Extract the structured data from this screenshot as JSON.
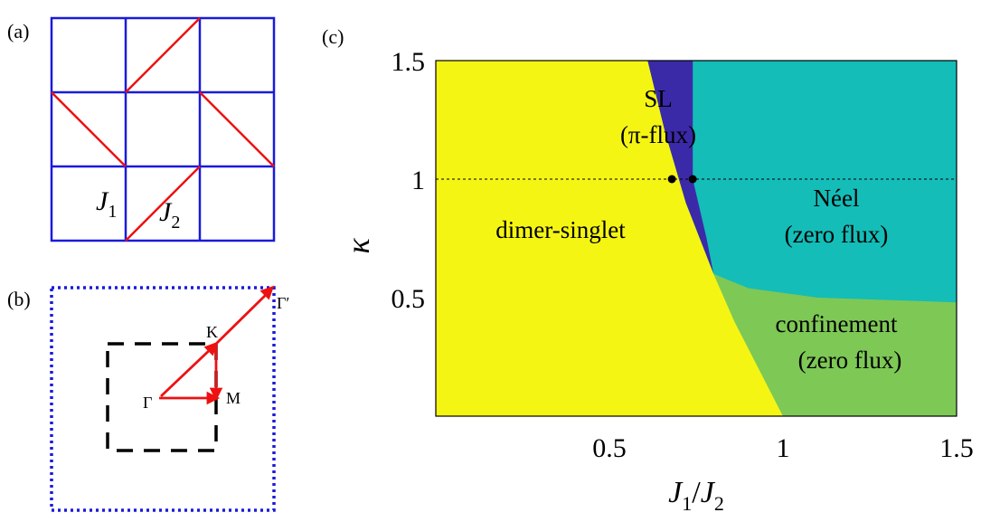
{
  "panels": {
    "a": {
      "label": "(a)",
      "j1_label": "J",
      "j1_sub": "1",
      "j2_label": "J",
      "j2_sub": "2"
    },
    "b": {
      "label": "(b)",
      "points": {
        "gamma": "Γ",
        "k": "K",
        "m": "M",
        "gamma_prime": "Γ′"
      }
    },
    "c": {
      "label": "(c)"
    }
  },
  "colors": {
    "lattice": "#1a1adb",
    "bond_j2": "#ee1111",
    "dimer_singlet": "#f5f514",
    "spin_liquid": "#3a2aa8",
    "neel": "#14bdb8",
    "confinement": "#7ec856",
    "path": "#ee1111",
    "inner_bz": "#000000",
    "outer_bz": "#1a1adb"
  },
  "chart_data": {
    "type": "heatmap",
    "xlabel": "J1/J2",
    "ylabel": "κ",
    "xlim": [
      0,
      1.5
    ],
    "ylim": [
      0,
      1.5
    ],
    "xticks": [
      "0.5",
      "1",
      "1.5"
    ],
    "yticks": [
      "1.5",
      "1",
      "0.5"
    ],
    "xtick_values": [
      0.5,
      1,
      1.5
    ],
    "ytick_values": [
      1.5,
      1,
      0.5
    ],
    "reference_line": {
      "kappa": 1,
      "style": "dotted"
    },
    "markers": [
      {
        "x": 0.68,
        "y": 1.0
      },
      {
        "x": 0.74,
        "y": 1.0
      }
    ],
    "regions": [
      {
        "id": "dimer",
        "line1": "dimer-singlet",
        "line2": ""
      },
      {
        "id": "sl",
        "line1": "SL",
        "line2": "(π-flux)"
      },
      {
        "id": "neel",
        "line1": "Néel",
        "line2": "(zero flux)"
      },
      {
        "id": "confinement",
        "line1": "confinement",
        "line2": "(zero flux)"
      }
    ],
    "boundaries": {
      "dimer_upper": [
        [
          0.61,
          1.5
        ],
        [
          0.66,
          1.2
        ],
        [
          0.72,
          0.9
        ],
        [
          0.8,
          0.6
        ]
      ],
      "dimer_lower": [
        [
          0.8,
          0.6
        ],
        [
          0.86,
          0.4
        ],
        [
          0.93,
          0.2
        ],
        [
          1.0,
          0.0
        ]
      ],
      "sl_neel": [
        [
          0.74,
          1.5
        ],
        [
          0.74,
          1.0
        ],
        [
          0.78,
          0.75
        ],
        [
          0.8,
          0.6
        ]
      ],
      "neel_confinement": [
        [
          0.8,
          0.6
        ],
        [
          0.9,
          0.54
        ],
        [
          1.1,
          0.5
        ],
        [
          1.3,
          0.49
        ],
        [
          1.5,
          0.48
        ]
      ]
    }
  }
}
